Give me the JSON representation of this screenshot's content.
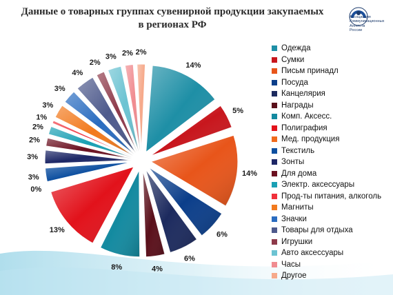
{
  "title_line1": "Данные о товарных группах сувенирной продукции закупаемых",
  "title_line2": "в регионах РФ",
  "logo": {
    "line1": "Ассоциация",
    "line2": "Коммуникационных",
    "line3": "Агентств",
    "line4": "России"
  },
  "chart_data": {
    "type": "pie",
    "title": "Данные о товарных группах сувенирной продукции закупаемых в регионах РФ",
    "legend_position": "right",
    "slices": [
      {
        "label": "Одежда",
        "value": 14,
        "display": "14%",
        "color": "#1e8fa6"
      },
      {
        "label": "Сумки",
        "value": 5,
        "display": "5%",
        "color": "#c8161d"
      },
      {
        "label": "Письм принадл",
        "value": 14,
        "display": "14%",
        "color": "#e8551a"
      },
      {
        "label": "Посуда",
        "value": 6,
        "display": "6%",
        "color": "#0b3e8a"
      },
      {
        "label": "Канцелярия",
        "value": 6,
        "display": "6%",
        "color": "#1c2a5e"
      },
      {
        "label": "Награды",
        "value": 4,
        "display": "4%",
        "color": "#5a0f1a"
      },
      {
        "label": "Комп. Аксесс.",
        "value": 8,
        "display": "8%",
        "color": "#138aa0"
      },
      {
        "label": "Полиграфия",
        "value": 13,
        "display": "13%",
        "color": "#e2121b"
      },
      {
        "label": "Мед. продукция",
        "value": 0,
        "display": "0%",
        "color": "#f06a1c"
      },
      {
        "label": "Текстиль",
        "value": 3,
        "display": "3%",
        "color": "#0d4fa0"
      },
      {
        "label": "Зонты",
        "value": 3,
        "display": "3%",
        "color": "#1d2766"
      },
      {
        "label": "Для дома",
        "value": 2,
        "display": "2%",
        "color": "#6b1020"
      },
      {
        "label": "Электр. аксессуары",
        "value": 2,
        "display": "2%",
        "color": "#1aa0b4"
      },
      {
        "label": "Прод-ты питания, алкоголь",
        "value": 1,
        "display": "1%",
        "color": "#f0303a"
      },
      {
        "label": "Магниты",
        "value": 3,
        "display": "3%",
        "color": "#f27a1e"
      },
      {
        "label": "Значки",
        "value": 3,
        "display": "3%",
        "color": "#2a6cc0"
      },
      {
        "label": "Товары для отдыха",
        "value": 4,
        "display": "4%",
        "color": "#4e5a8c"
      },
      {
        "label": "Игрушки",
        "value": 2,
        "display": "2%",
        "color": "#8e3a4a"
      },
      {
        "label": "Авто аксессуары",
        "value": 3,
        "display": "3%",
        "color": "#6cc3d2"
      },
      {
        "label": "Часы",
        "value": 2,
        "display": "2%",
        "color": "#f08c90"
      },
      {
        "label": "Другое",
        "value": 2,
        "display": "2%",
        "color": "#f6a98a"
      }
    ]
  }
}
